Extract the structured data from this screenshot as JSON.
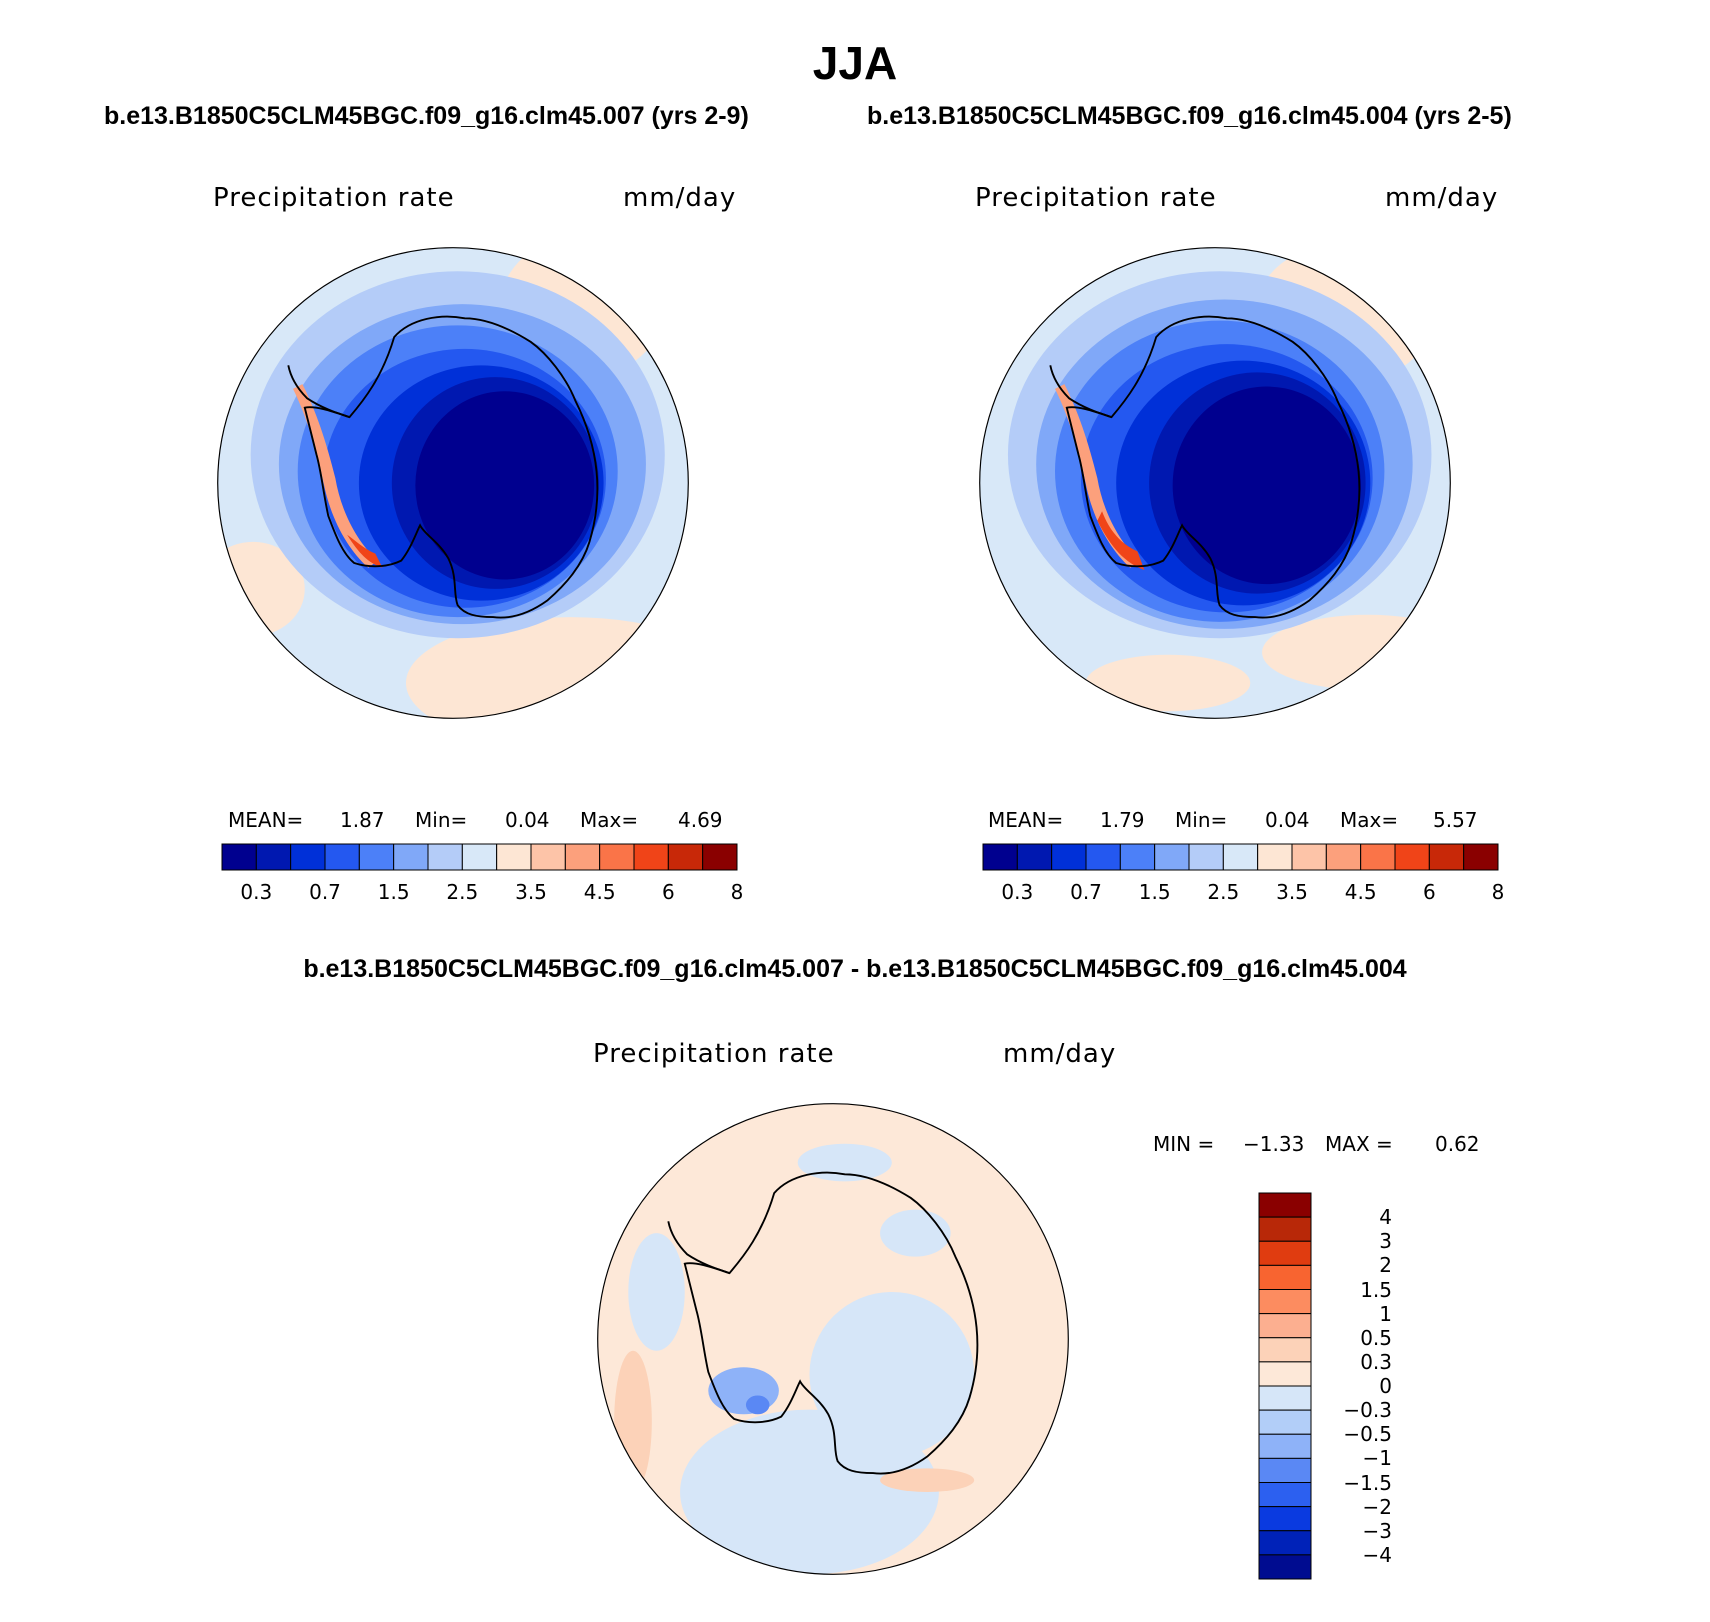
{
  "main_title": "JJA",
  "top": {
    "left_case": "b.e13.B1850C5CLM45BGC.f09_g16.clm45.007 (yrs 2-9)",
    "right_case": "b.e13.B1850C5CLM45BGC.f09_g16.clm45.004 (yrs 2-5)"
  },
  "panels": [
    {
      "variable": "Precipitation rate",
      "units": "mm/day",
      "stats": {
        "mean_label": "MEAN=",
        "mean": "1.87",
        "min_label": "Min=",
        "min": "0.04",
        "max_label": "Max=",
        "max": "4.69"
      }
    },
    {
      "variable": "Precipitation rate",
      "units": "mm/day",
      "stats": {
        "mean_label": "MEAN=",
        "mean": "1.79",
        "min_label": "Min=",
        "min": "0.04",
        "max_label": "Max=",
        "max": "5.57"
      }
    }
  ],
  "diff": {
    "title": "b.e13.B1850C5CLM45BGC.f09_g16.clm45.007 - b.e13.B1850C5CLM45BGC.f09_g16.clm45.004",
    "variable": "Precipitation rate",
    "units": "mm/day",
    "min_label": "MIN =",
    "min": "−1.33",
    "max_label": "MAX =",
    "max": "0.62"
  },
  "abs_colorbar": {
    "colors": [
      "#00008f",
      "#0018b0",
      "#0030d8",
      "#2458f0",
      "#4c80f8",
      "#80a8f8",
      "#b4ccf8",
      "#d8e8f8",
      "#fde6d4",
      "#fdc4a8",
      "#fca07c",
      "#fa7448",
      "#f04418",
      "#c82808",
      "#8a0000"
    ],
    "labels": [
      "0.3",
      "0.7",
      "1.5",
      "2.5",
      "3.5",
      "4.5",
      "6",
      "8"
    ]
  },
  "diff_colorbar": {
    "colors": [
      "#8a0000",
      "#b82808",
      "#e03c10",
      "#f86430",
      "#fc8c60",
      "#fcaf90",
      "#fcd2b8",
      "#fde8d8",
      "#d6e6f8",
      "#b2cef8",
      "#8eb2f8",
      "#5a88f4",
      "#2c60f0",
      "#0a3ae0",
      "#0022b8",
      "#000c90"
    ],
    "labels": [
      "4",
      "3",
      "2",
      "1.5",
      "1",
      "0.5",
      "0.3",
      "0",
      "−0.3",
      "−0.5",
      "−1",
      "−1.5",
      "−2",
      "−3",
      "−4"
    ]
  }
}
